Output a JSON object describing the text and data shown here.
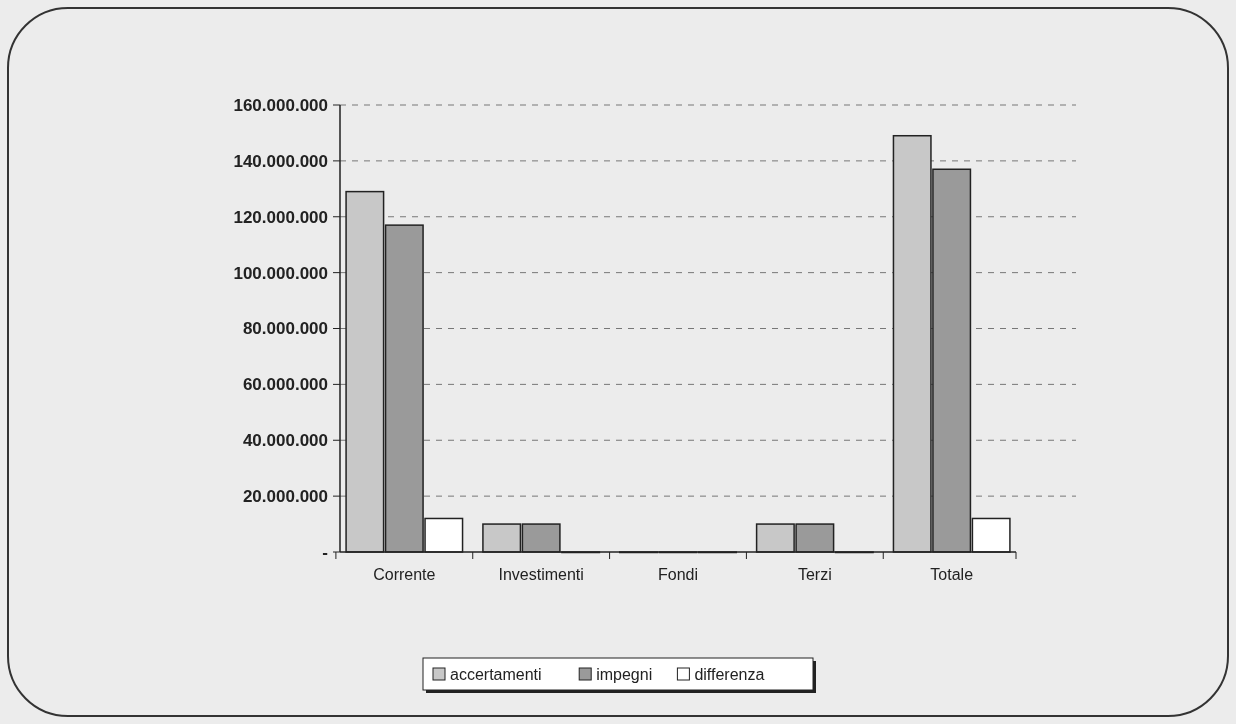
{
  "chart_data": {
    "type": "bar",
    "categories": [
      "Corrente",
      "Investimenti",
      "Fondi",
      "Terzi",
      "Totale"
    ],
    "series": [
      {
        "name": "accertamenti",
        "color": "#c8c8c8",
        "values": [
          129000000,
          10000000,
          0,
          10000000,
          149000000
        ]
      },
      {
        "name": "impegni",
        "color": "#9a9a9a",
        "values": [
          117000000,
          10000000,
          0,
          10000000,
          137000000
        ]
      },
      {
        "name": "differenza",
        "color": "#ffffff",
        "values": [
          12000000,
          0,
          0,
          0,
          12000000
        ]
      }
    ],
    "ylim": [
      0,
      160000000
    ],
    "yticks": [
      {
        "value": 0,
        "label": "-"
      },
      {
        "value": 20000000,
        "label": "20.000.000"
      },
      {
        "value": 40000000,
        "label": "40.000.000"
      },
      {
        "value": 60000000,
        "label": "60.000.000"
      },
      {
        "value": 80000000,
        "label": "80.000.000"
      },
      {
        "value": 100000000,
        "label": "100.000.000"
      },
      {
        "value": 120000000,
        "label": "120.000.000"
      },
      {
        "value": 140000000,
        "label": "140.000.000"
      },
      {
        "value": 160000000,
        "label": "160.000.000"
      }
    ],
    "grid": "y",
    "legend": "bottom"
  }
}
